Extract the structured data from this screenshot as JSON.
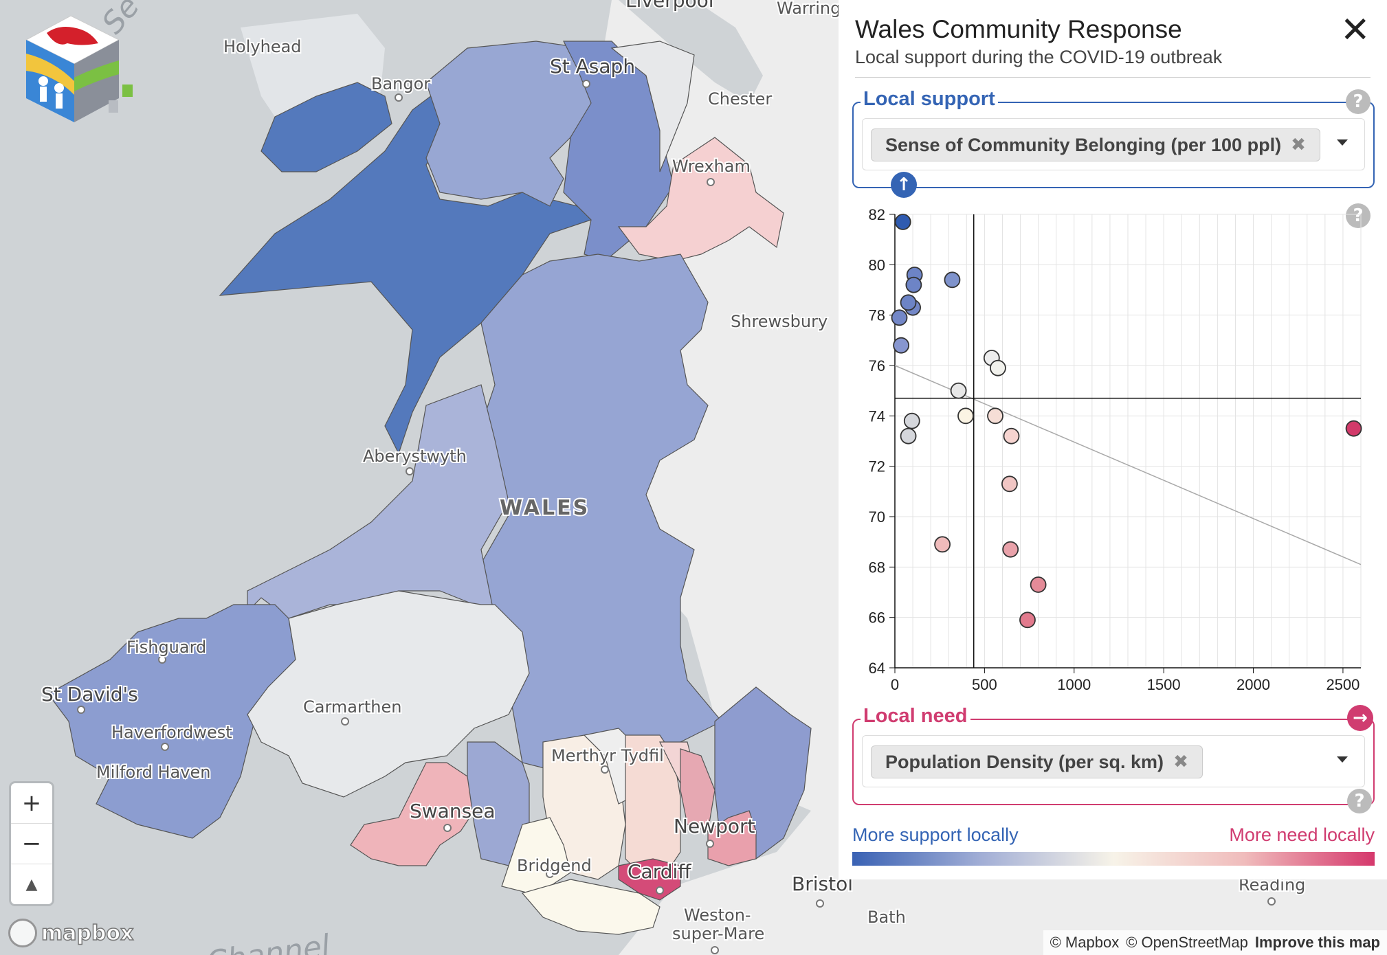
{
  "panel": {
    "title": "Wales Community Response",
    "subtitle": "Local support during the COVID-19 outbreak",
    "close_label": "✕",
    "support": {
      "legend": "Local support",
      "selected": "Sense of Community Belonging (per 100 ppl)",
      "remove_glyph": "✖",
      "help": "?",
      "arrow": "↑"
    },
    "chart_help": "?",
    "need": {
      "legend": "Local need",
      "selected": "Population Density (per sq. km)",
      "remove_glyph": "✖",
      "help": "?",
      "arrow": "→"
    },
    "legend_left": "More support locally",
    "legend_right": "More need locally"
  },
  "map": {
    "labels": {
      "liverpool": "Liverpool",
      "warrington": "Warring",
      "holyhead": "Holyhead",
      "bangor": "Bangor",
      "st_asaph": "St Asaph",
      "chester": "Chester",
      "wrexham": "Wrexham",
      "shrewsbury": "Shrewsbury",
      "aberystwyth": "Aberystwyth",
      "wales": "WALES",
      "fishguard": "Fishguard",
      "st_davids": "St David's",
      "carmarthen": "Carmarthen",
      "haverfordwest": "Haverfordwest",
      "milford_haven": "Milford Haven",
      "merthyr": "Merthyr Tydfil",
      "swansea": "Swansea",
      "newport": "Newport",
      "bridgend": "Bridgend",
      "cardiff": "Cardiff",
      "bristol": "Bristol",
      "bath": "Bath",
      "reading": "Reading",
      "weston1": "Weston-",
      "weston2": "super-Mare",
      "sea": "Se",
      "channel": "Channel"
    },
    "zoom_in": "+",
    "zoom_out": "−",
    "compass": "▲",
    "mapbox": "mapbox",
    "attribution": {
      "mapbox": "© Mapbox",
      "osm": "© OpenStreetMap",
      "improve": "Improve this map"
    }
  },
  "chart_data": {
    "type": "scatter",
    "title": "",
    "xlabel": "Population Density (per sq. km)",
    "ylabel": "Sense of Community Belonging (per 100 ppl)",
    "xlim": [
      0,
      2600
    ],
    "ylim": [
      64,
      82
    ],
    "xticks": [
      "0",
      "500",
      "1000",
      "1500",
      "2000",
      "2500"
    ],
    "yticks": [
      "64",
      "66",
      "68",
      "70",
      "72",
      "74",
      "76",
      "78",
      "80",
      "82"
    ],
    "x_tick_values": [
      0,
      500,
      1000,
      1500,
      2000,
      2500
    ],
    "y_tick_values": [
      64,
      66,
      68,
      70,
      72,
      74,
      76,
      78,
      80,
      82
    ],
    "mean_x": 440,
    "mean_y": 74.7,
    "trend": {
      "x0": 0,
      "y0": 76.0,
      "x1": 2600,
      "y1": 68.1
    },
    "points": [
      {
        "x": 45,
        "y": 81.7,
        "color": "#2f5bb0"
      },
      {
        "x": 110,
        "y": 79.6,
        "color": "#6d84c6"
      },
      {
        "x": 105,
        "y": 79.2,
        "color": "#6d84c6"
      },
      {
        "x": 320,
        "y": 79.4,
        "color": "#7f93cc"
      },
      {
        "x": 100,
        "y": 78.3,
        "color": "#7387c7"
      },
      {
        "x": 75,
        "y": 78.5,
        "color": "#6d84c6"
      },
      {
        "x": 25,
        "y": 77.9,
        "color": "#7387c7"
      },
      {
        "x": 35,
        "y": 76.8,
        "color": "#8796cf"
      },
      {
        "x": 540,
        "y": 76.3,
        "color": "#ededed"
      },
      {
        "x": 575,
        "y": 75.9,
        "color": "#f1f1ec"
      },
      {
        "x": 355,
        "y": 75.0,
        "color": "#e7e7e7"
      },
      {
        "x": 95,
        "y": 73.8,
        "color": "#d5d7dc"
      },
      {
        "x": 75,
        "y": 73.2,
        "color": "#d5d7dc"
      },
      {
        "x": 395,
        "y": 74.0,
        "color": "#fbf4e4"
      },
      {
        "x": 560,
        "y": 74.0,
        "color": "#f6ded6"
      },
      {
        "x": 650,
        "y": 73.2,
        "color": "#f6d4d0"
      },
      {
        "x": 2560,
        "y": 73.5,
        "color": "#d23a6a"
      },
      {
        "x": 640,
        "y": 71.3,
        "color": "#f1c6c4"
      },
      {
        "x": 265,
        "y": 68.9,
        "color": "#efbbbb"
      },
      {
        "x": 645,
        "y": 68.7,
        "color": "#e9a2aa"
      },
      {
        "x": 800,
        "y": 67.3,
        "color": "#e48b98"
      },
      {
        "x": 740,
        "y": 65.9,
        "color": "#e27a8d"
      }
    ]
  }
}
